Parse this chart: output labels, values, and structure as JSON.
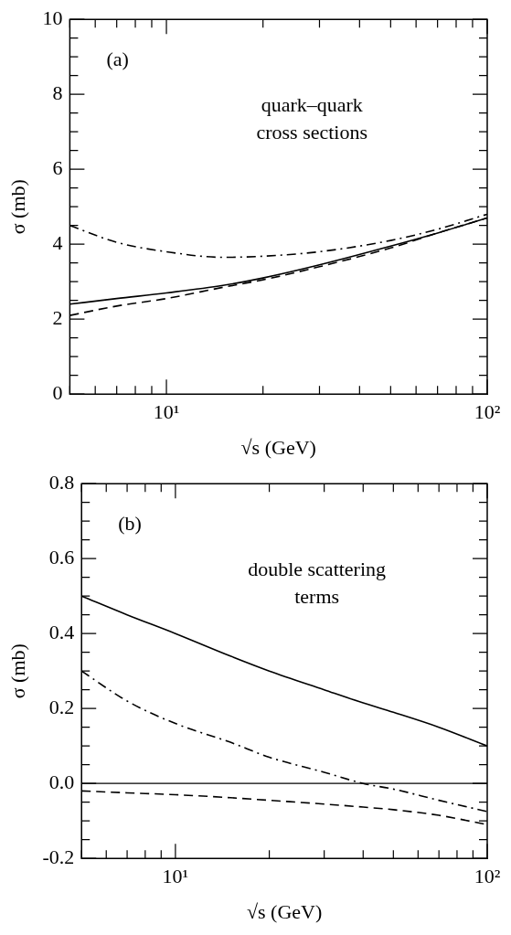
{
  "chart_data": [
    {
      "type": "line",
      "xlabel": "√s (GeV)",
      "ylabel": "σ (mb)",
      "log": "x",
      "xlim": [
        5,
        100
      ],
      "ylim": [
        0,
        10
      ],
      "xticks": [
        {
          "value": 5,
          "label": null
        },
        {
          "value": 6,
          "label": null
        },
        {
          "value": 7,
          "label": null
        },
        {
          "value": 8,
          "label": null
        },
        {
          "value": 9,
          "label": null
        },
        {
          "value": 10,
          "label": "10¹"
        },
        {
          "value": 20,
          "label": null
        },
        {
          "value": 30,
          "label": null
        },
        {
          "value": 40,
          "label": null
        },
        {
          "value": 50,
          "label": null
        },
        {
          "value": 60,
          "label": null
        },
        {
          "value": 70,
          "label": null
        },
        {
          "value": 80,
          "label": null
        },
        {
          "value": 90,
          "label": null
        },
        {
          "value": 100,
          "label": "10²"
        }
      ],
      "yticks": [
        0,
        {
          "value": 0.5,
          "label": null
        },
        {
          "value": 1,
          "label": null
        },
        {
          "value": 1.5,
          "label": null
        },
        2,
        {
          "value": 2.5,
          "label": null
        },
        {
          "value": 3,
          "label": null
        },
        {
          "value": 3.5,
          "label": null
        },
        4,
        {
          "value": 4.5,
          "label": null
        },
        {
          "value": 5,
          "label": null
        },
        {
          "value": 5.5,
          "label": null
        },
        6,
        {
          "value": 6.5,
          "label": null
        },
        {
          "value": 7,
          "label": null
        },
        {
          "value": 7.5,
          "label": null
        },
        8,
        {
          "value": 8.5,
          "label": null
        },
        {
          "value": 9,
          "label": null
        },
        {
          "value": 9.5,
          "label": null
        },
        10
      ],
      "x": [
        5,
        7,
        10,
        15,
        20,
        30,
        50,
        70,
        100
      ],
      "series": [
        {
          "color": "#000000",
          "line_style": "solid",
          "values": [
            2.4,
            2.55,
            2.7,
            2.9,
            3.1,
            3.45,
            3.95,
            4.3,
            4.7
          ]
        },
        {
          "color": "#000000",
          "line_style": "dashed",
          "values": [
            2.1,
            2.35,
            2.55,
            2.85,
            3.05,
            3.4,
            3.9,
            4.3,
            4.7
          ]
        },
        {
          "color": "#000000",
          "line_style": "dashdot",
          "values": [
            4.5,
            4.05,
            3.8,
            3.65,
            3.68,
            3.8,
            4.1,
            4.4,
            4.8
          ]
        }
      ],
      "grid": false,
      "legend": false,
      "annotations": [
        "(a)",
        "quark–quark",
        "cross sections"
      ]
    },
    {
      "type": "line",
      "xlabel": "√s (GeV)",
      "ylabel": "σ (mb)",
      "log": "x",
      "xlim": [
        5,
        100
      ],
      "ylim": [
        -0.2,
        0.8
      ],
      "xticks": [
        {
          "value": 5,
          "label": null
        },
        {
          "value": 6,
          "label": null
        },
        {
          "value": 7,
          "label": null
        },
        {
          "value": 8,
          "label": null
        },
        {
          "value": 9,
          "label": null
        },
        {
          "value": 10,
          "label": "10¹"
        },
        {
          "value": 20,
          "label": null
        },
        {
          "value": 30,
          "label": null
        },
        {
          "value": 40,
          "label": null
        },
        {
          "value": 50,
          "label": null
        },
        {
          "value": 60,
          "label": null
        },
        {
          "value": 70,
          "label": null
        },
        {
          "value": 80,
          "label": null
        },
        {
          "value": 90,
          "label": null
        },
        {
          "value": 100,
          "label": "10²"
        }
      ],
      "yticks": [
        -0.2,
        {
          "value": -0.15,
          "label": null
        },
        {
          "value": -0.1,
          "label": null
        },
        {
          "value": -0.05,
          "label": null
        },
        {
          "value": 0,
          "label": "0.0"
        },
        {
          "value": 0.05,
          "label": null
        },
        {
          "value": 0.1,
          "label": null
        },
        {
          "value": 0.15,
          "label": null
        },
        0.2,
        {
          "value": 0.25,
          "label": null
        },
        {
          "value": 0.3,
          "label": null
        },
        {
          "value": 0.35,
          "label": null
        },
        0.4,
        {
          "value": 0.45,
          "label": null
        },
        {
          "value": 0.5,
          "label": null
        },
        {
          "value": 0.55,
          "label": null
        },
        0.6,
        {
          "value": 0.65,
          "label": null
        },
        {
          "value": 0.7,
          "label": null
        },
        {
          "value": 0.75,
          "label": null
        },
        0.8
      ],
      "x": [
        5,
        7,
        10,
        15,
        20,
        30,
        40,
        50,
        70,
        100
      ],
      "series": [
        {
          "color": "#000000",
          "line_style": "solid",
          "values": [
            0.5,
            0.45,
            0.4,
            0.34,
            0.3,
            0.25,
            0.215,
            0.19,
            0.15,
            0.1
          ]
        },
        {
          "color": "#000000",
          "line_style": "dashed",
          "values": [
            -0.02,
            -0.025,
            -0.03,
            -0.038,
            -0.045,
            -0.055,
            -0.063,
            -0.07,
            -0.085,
            -0.11
          ]
        },
        {
          "color": "#000000",
          "line_style": "dashdot",
          "values": [
            0.3,
            0.22,
            0.16,
            0.11,
            0.07,
            0.03,
            0.0,
            -0.015,
            -0.045,
            -0.075
          ]
        }
      ],
      "ref_lines": [
        {
          "axis": "y",
          "value": 0,
          "color": "#000000",
          "line_style": "solid"
        }
      ],
      "grid": false,
      "legend": false,
      "annotations": [
        "(b)",
        "double scattering",
        "terms"
      ]
    }
  ]
}
